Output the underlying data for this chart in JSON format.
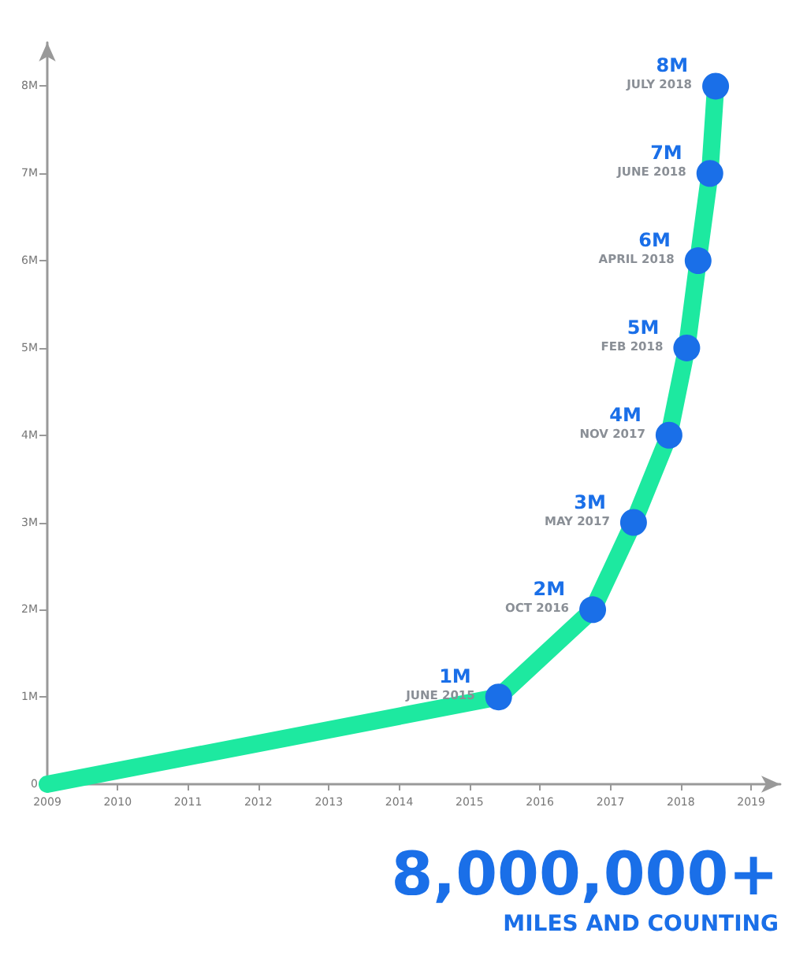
{
  "chart_data": {
    "type": "line",
    "x": [
      "2009",
      "2015-06",
      "2016-10",
      "2017-05",
      "2017-11",
      "2018-02",
      "2018-04",
      "2018-06",
      "2018-07"
    ],
    "series": [
      {
        "color": "#1de9a0",
        "values": [
          0,
          1,
          2,
          3,
          4,
          5,
          6,
          7,
          8
        ],
        "colors": [
          null,
          "#1a6fe8",
          "#1a6fe8",
          "#1a6fe8",
          "#1a6fe8",
          "#1a6fe8",
          "#1a6fe8",
          "#1a6fe8",
          "#1a6fe8"
        ],
        "value_labels": [
          null,
          "1M",
          "2M",
          "3M",
          "4M",
          "5M",
          "6M",
          "7M",
          "8M"
        ]
      }
    ],
    "xlim": [
      "2009",
      "2019-06"
    ],
    "xticks": [
      "2009",
      "2010",
      "2011",
      "2012",
      "2013",
      "2014",
      "2015",
      "2016",
      "2017",
      "2018",
      "2019"
    ],
    "ylim": [
      0,
      8.5
    ],
    "yticks": [
      {
        "value": 0,
        "label": "0"
      },
      {
        "value": 1,
        "label": "1M"
      },
      {
        "value": 2,
        "label": "2M"
      },
      {
        "value": 3,
        "label": "3M"
      },
      {
        "value": 4,
        "label": "4M"
      },
      {
        "value": 5,
        "label": "5M"
      },
      {
        "value": 6,
        "label": "6M"
      },
      {
        "value": 7,
        "label": "7M"
      },
      {
        "value": 8,
        "label": "8M"
      }
    ],
    "grid": false,
    "marker": "circle",
    "line_style": "solid",
    "annotations": [
      {
        "text": "JUNE 2015",
        "x": "2015-06",
        "y": 1
      },
      {
        "text": "OCT 2016",
        "x": "2016-10",
        "y": 2
      },
      {
        "text": "MAY 2017",
        "x": "2017-05",
        "y": 3
      },
      {
        "text": "NOV 2017",
        "x": "2017-11",
        "y": 4
      },
      {
        "text": "FEB 2018",
        "x": "2018-02",
        "y": 5
      },
      {
        "text": "APRIL 2018",
        "x": "2018-04",
        "y": 6
      },
      {
        "text": "JUNE 2018",
        "x": "2018-06",
        "y": 7
      },
      {
        "text": "JULY 2018",
        "x": "2018-07",
        "y": 8
      },
      "8,000,000+",
      "MILES AND COUNTING"
    ]
  }
}
